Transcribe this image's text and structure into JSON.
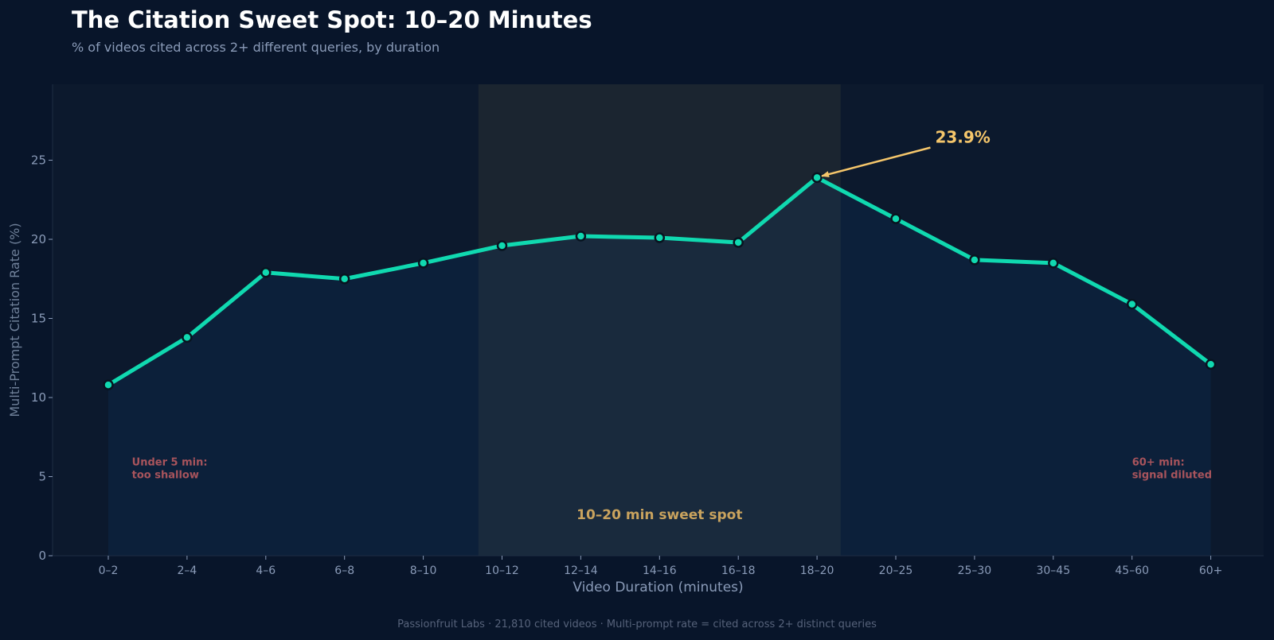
{
  "header": {
    "title": "The Citation Sweet Spot: 10–20 Minutes",
    "subtitle": "% of videos cited across 2+ different queries, by duration"
  },
  "footer": {
    "note": "Passionfruit Labs  ·  21,810 cited videos  ·  Multi-prompt rate = cited across 2+ distinct queries"
  },
  "colors": {
    "background": "#08152a",
    "plot_background": "#0c192d",
    "line": "#10d9b0",
    "highlight_band": "#1b2530",
    "annotation": "#f5c66b",
    "zone_warning": "#a8545c",
    "axis_text": "#8a9bb8"
  },
  "chart_data": {
    "type": "line",
    "title": "The Citation Sweet Spot: 10–20 Minutes",
    "subtitle": "% of videos cited across 2+ different queries, by duration",
    "xlabel": "Video Duration (minutes)",
    "ylabel": "Multi-Prompt Citation Rate (%)",
    "categories": [
      "0–2",
      "2–4",
      "4–6",
      "6–8",
      "8–10",
      "10–12",
      "12–14",
      "14–16",
      "16–18",
      "18–20",
      "20–25",
      "25–30",
      "30–45",
      "45–60",
      "60+"
    ],
    "values": [
      10.8,
      13.8,
      17.9,
      17.5,
      18.5,
      19.6,
      20.2,
      20.1,
      19.8,
      23.9,
      21.3,
      18.7,
      18.5,
      15.9,
      12.1
    ],
    "ylim": [
      0,
      29.8
    ],
    "yticks": [
      0,
      5,
      10,
      15,
      20,
      25
    ],
    "grid": false,
    "legend": "none",
    "highlight_band": {
      "from_category": "10–12",
      "to_category": "18–20",
      "label": "10–20 min sweet spot",
      "label_y": 2.3
    },
    "peak_annotation": {
      "category": "18–20",
      "value": 23.9,
      "label": "23.9%",
      "label_x_category_offset": 1.5,
      "label_y": 26.1
    },
    "zone_annotations": [
      {
        "category": "0–2",
        "category_offset": 0.3,
        "y": 5.2,
        "lines": [
          "Under 5 min:",
          "too shallow"
        ]
      },
      {
        "category": "45–60",
        "category_offset": 0.0,
        "y": 5.2,
        "lines": [
          "60+ min:",
          "signal diluted"
        ]
      }
    ]
  }
}
